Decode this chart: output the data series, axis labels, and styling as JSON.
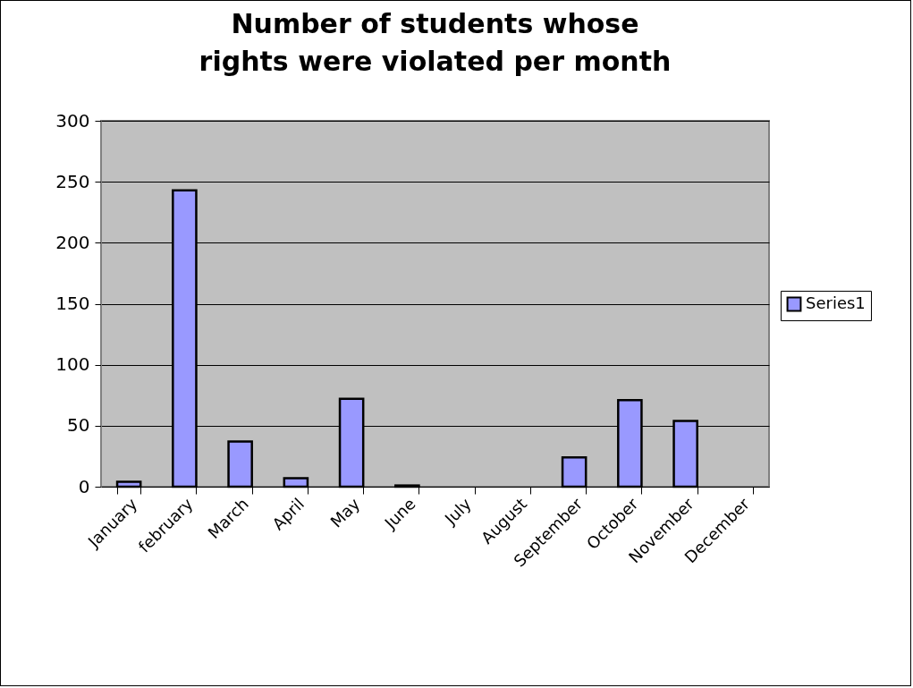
{
  "chart_data": {
    "type": "bar",
    "title": "Number of students whose rights were violated per month",
    "categories": [
      "January",
      "february",
      "March",
      "April",
      "May",
      "June",
      "July",
      "August",
      "September",
      "October",
      "November",
      "December"
    ],
    "series": [
      {
        "name": "Series1",
        "color": "#9999ff",
        "values": [
          4,
          243,
          37,
          7,
          72,
          1,
          0,
          0,
          24,
          71,
          54,
          0
        ]
      }
    ],
    "ylim": [
      0,
      300
    ],
    "yticks": [
      0,
      50,
      100,
      150,
      200,
      250,
      300
    ],
    "grid": "y",
    "legend": "right"
  }
}
